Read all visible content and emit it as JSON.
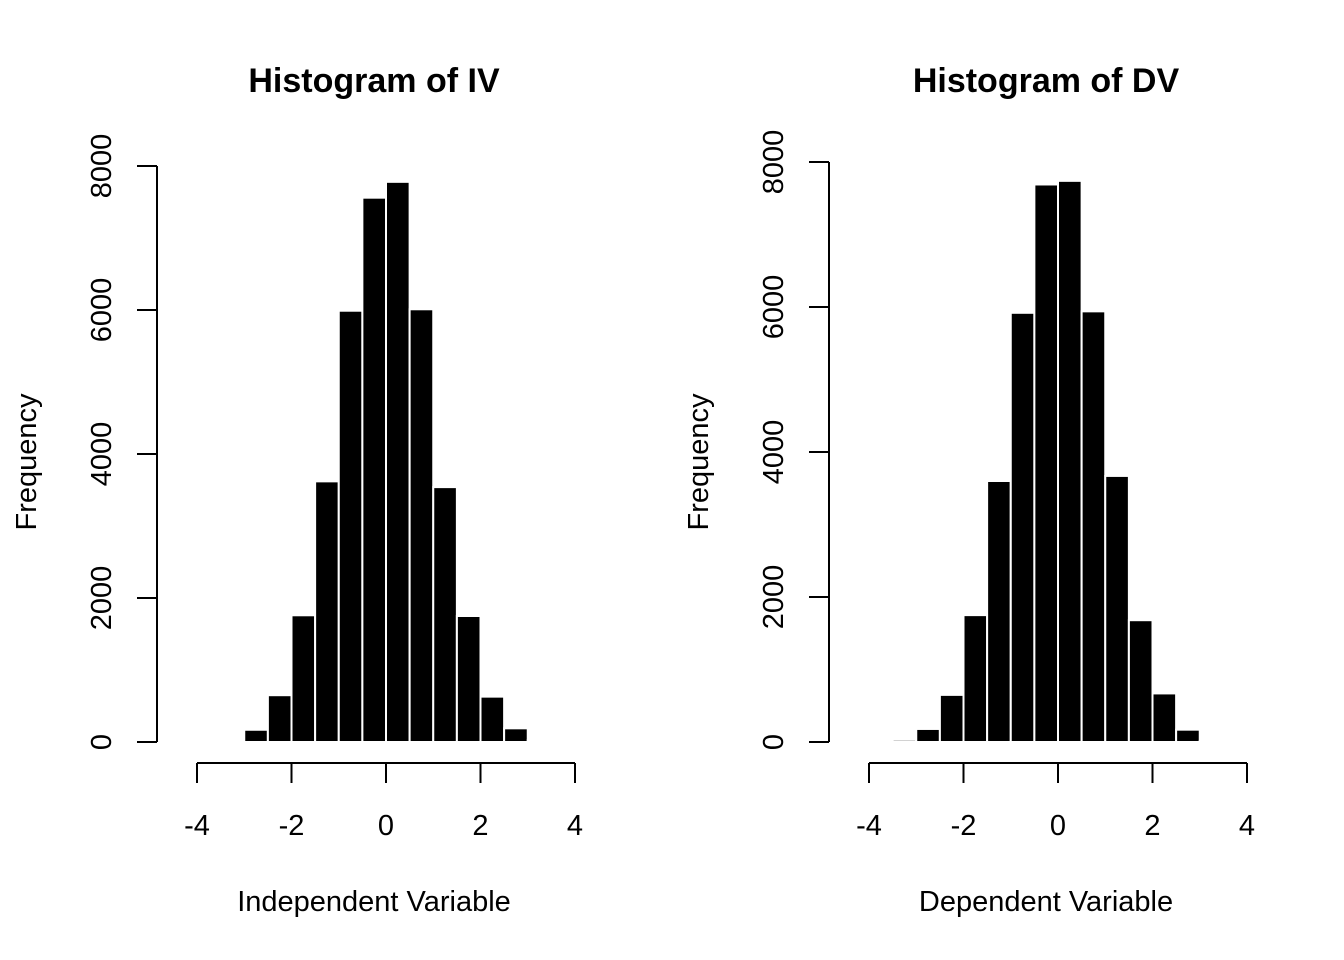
{
  "chart_data": [
    {
      "type": "bar",
      "title": "Histogram of IV",
      "xlabel": "Independent Variable",
      "ylabel": "Frequency",
      "xlim": [
        -4,
        4
      ],
      "ylim": [
        0,
        8000
      ],
      "x_ticks": [
        -4,
        -2,
        0,
        2,
        4
      ],
      "y_ticks": [
        0,
        2000,
        4000,
        6000,
        8000
      ],
      "grid": false,
      "bin_edges": [
        -3.5,
        -3.0,
        -2.5,
        -2.0,
        -1.5,
        -1.0,
        -0.5,
        0.0,
        0.5,
        1.0,
        1.5,
        2.0,
        2.5,
        3.0,
        3.5
      ],
      "values": [
        15,
        170,
        650,
        1760,
        3620,
        5990,
        7560,
        7780,
        6010,
        3540,
        1750,
        630,
        190,
        25
      ]
    },
    {
      "type": "bar",
      "title": "Histogram of DV",
      "xlabel": "Dependent Variable",
      "ylabel": "Frequency",
      "xlim": [
        -4,
        4
      ],
      "ylim": [
        0,
        8000
      ],
      "x_ticks": [
        -4,
        -2,
        0,
        2,
        4
      ],
      "y_ticks": [
        0,
        2000,
        4000,
        6000,
        8000
      ],
      "grid": false,
      "bin_edges": [
        -3.5,
        -3.0,
        -2.5,
        -2.0,
        -1.5,
        -1.0,
        -0.5,
        0.0,
        0.5,
        1.0,
        1.5,
        2.0,
        2.5,
        3.0,
        3.5
      ],
      "values": [
        30,
        180,
        650,
        1750,
        3600,
        5920,
        7690,
        7740,
        5940,
        3670,
        1680,
        670,
        170,
        15
      ]
    }
  ]
}
